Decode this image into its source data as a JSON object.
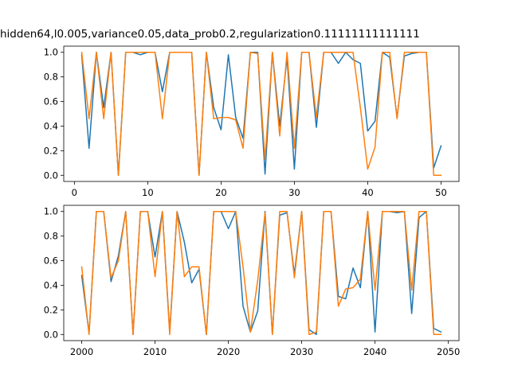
{
  "figure": {
    "suptitle": "hidden64,l0.005,variance0.05,data_prob0.2,regularization0.11111111111111"
  },
  "colors": {
    "series_blue": "#1f77b4",
    "series_orange": "#ff7f0e",
    "axes": "#000000"
  },
  "chart_data": [
    {
      "type": "line",
      "xlim": [
        -1.45,
        52.45
      ],
      "ylim": [
        -0.05,
        1.05
      ],
      "xticks": [
        0,
        10,
        20,
        30,
        40,
        50
      ],
      "yticks": [
        0.0,
        0.2,
        0.4,
        0.6,
        0.8,
        1.0
      ],
      "xtick_labels": [
        "0",
        "10",
        "20",
        "30",
        "40",
        "50"
      ],
      "ytick_labels": [
        "0.0",
        "0.2",
        "0.4",
        "0.6",
        "0.8",
        "1.0"
      ],
      "grid": false,
      "x": [
        1,
        2,
        3,
        4,
        5,
        6,
        7,
        8,
        9,
        10,
        11,
        12,
        13,
        14,
        15,
        16,
        17,
        18,
        19,
        20,
        21,
        22,
        23,
        24,
        25,
        26,
        27,
        28,
        29,
        30,
        31,
        32,
        33,
        34,
        35,
        36,
        37,
        38,
        39,
        40,
        41,
        42,
        43,
        44,
        45,
        46,
        47,
        48,
        49,
        50
      ],
      "series": [
        {
          "color": "#1f77b4",
          "values": [
            0.98,
            0.22,
            1.0,
            0.55,
            1.0,
            0.0,
            1.0,
            1.0,
            0.98,
            1.0,
            1.0,
            0.68,
            1.0,
            1.0,
            1.0,
            1.0,
            0.0,
            1.0,
            0.55,
            0.37,
            0.98,
            0.47,
            0.3,
            1.0,
            1.0,
            0.01,
            1.0,
            0.4,
            0.96,
            0.05,
            1.0,
            1.0,
            0.39,
            1.0,
            1.0,
            0.91,
            1.0,
            0.94,
            0.91,
            0.36,
            0.44,
            1.0,
            0.96,
            0.47,
            0.97,
            0.99,
            1.0,
            1.0,
            0.06,
            0.24
          ]
        },
        {
          "color": "#ff7f0e",
          "values": [
            1.0,
            0.46,
            1.0,
            0.46,
            1.0,
            0.0,
            1.0,
            1.0,
            1.0,
            1.0,
            1.0,
            0.46,
            1.0,
            1.0,
            1.0,
            1.0,
            0.0,
            1.0,
            0.46,
            0.47,
            0.47,
            0.45,
            0.22,
            1.0,
            0.99,
            0.13,
            1.0,
            0.32,
            1.0,
            0.22,
            1.0,
            1.0,
            0.47,
            1.0,
            1.0,
            1.0,
            1.0,
            1.0,
            0.55,
            0.05,
            0.23,
            1.0,
            1.0,
            0.46,
            1.0,
            1.0,
            1.0,
            1.0,
            0.0,
            0.0
          ]
        }
      ]
    },
    {
      "type": "line",
      "xlim": [
        1997.55,
        2051.45
      ],
      "ylim": [
        -0.05,
        1.05
      ],
      "xticks": [
        2000,
        2010,
        2020,
        2030,
        2040,
        2050
      ],
      "yticks": [
        0.0,
        0.2,
        0.4,
        0.6,
        0.8,
        1.0
      ],
      "xtick_labels": [
        "2000",
        "2010",
        "2020",
        "2030",
        "2040",
        "2050"
      ],
      "ytick_labels": [
        "0.0",
        "0.2",
        "0.4",
        "0.6",
        "0.8",
        "1.0"
      ],
      "grid": false,
      "x": [
        2000,
        2001,
        2002,
        2003,
        2004,
        2005,
        2006,
        2007,
        2008,
        2009,
        2010,
        2011,
        2012,
        2013,
        2014,
        2015,
        2016,
        2017,
        2018,
        2019,
        2020,
        2021,
        2022,
        2023,
        2024,
        2025,
        2026,
        2027,
        2028,
        2029,
        2030,
        2031,
        2032,
        2033,
        2034,
        2035,
        2036,
        2037,
        2038,
        2039,
        2040,
        2041,
        2042,
        2043,
        2044,
        2045,
        2046,
        2047,
        2048,
        2049
      ],
      "series": [
        {
          "color": "#1f77b4",
          "values": [
            0.48,
            0.01,
            1.0,
            1.0,
            0.43,
            0.64,
            1.0,
            0.0,
            1.0,
            1.0,
            0.63,
            1.0,
            0.02,
            1.0,
            0.75,
            0.42,
            0.53,
            0.0,
            1.0,
            1.0,
            0.86,
            1.0,
            0.23,
            0.02,
            0.19,
            1.0,
            0.0,
            0.97,
            0.99,
            0.49,
            1.0,
            0.04,
            0.0,
            1.0,
            1.0,
            0.31,
            0.29,
            0.54,
            0.38,
            1.0,
            0.02,
            1.0,
            1.0,
            0.99,
            1.0,
            0.17,
            0.95,
            1.0,
            0.05,
            0.02
          ]
        },
        {
          "color": "#ff7f0e",
          "values": [
            0.55,
            0.0,
            1.0,
            1.0,
            0.46,
            0.6,
            1.0,
            0.0,
            1.0,
            1.0,
            0.47,
            1.0,
            0.0,
            1.0,
            0.47,
            0.55,
            0.55,
            0.0,
            1.0,
            1.0,
            1.0,
            1.0,
            0.55,
            0.02,
            0.44,
            0.99,
            0.0,
            1.0,
            1.0,
            0.46,
            1.0,
            0.0,
            0.02,
            1.0,
            1.0,
            0.23,
            0.37,
            0.38,
            0.45,
            1.0,
            0.36,
            1.0,
            1.0,
            1.0,
            1.0,
            0.36,
            1.0,
            1.0,
            0.0,
            0.0
          ]
        }
      ]
    }
  ]
}
